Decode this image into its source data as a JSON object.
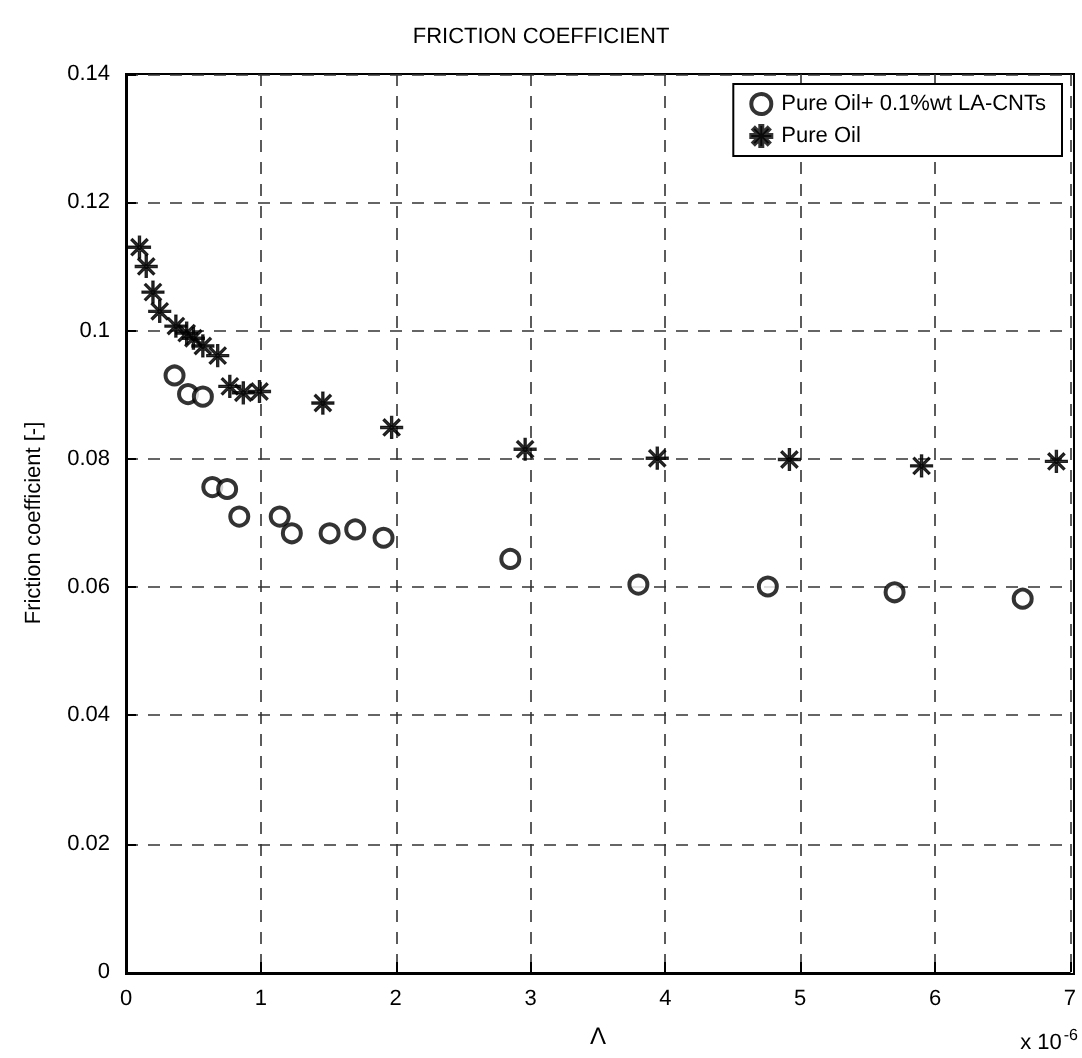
{
  "chart_data": {
    "type": "scatter",
    "title": "FRICTION COEFFICIENT",
    "xlabel": "Λ",
    "ylabel": "Friction coefficient [-]",
    "annotations": [
      "x 10$^{-6}$"
    ],
    "xlim": [
      0,
      7
    ],
    "xticks": [
      0,
      1,
      2,
      3,
      4,
      5,
      6,
      7
    ],
    "ylim": [
      0,
      0.14
    ],
    "yticks": [
      0,
      0.02,
      0.04,
      0.06,
      0.08,
      0.1,
      0.12,
      0.14
    ],
    "grid": true,
    "legend": "top right",
    "series": [
      {
        "name": "Pure Oil+ 0.1%wt LA-CNTs",
        "color": "#000000",
        "marker": "circle",
        "x": [
          0.36,
          0.46,
          0.57,
          0.64,
          0.75,
          0.84,
          1.14,
          1.23,
          1.51,
          1.7,
          1.91,
          2.85,
          3.8,
          4.76,
          5.7,
          6.65
        ],
        "values": [
          0.093,
          0.0901,
          0.0897,
          0.0756,
          0.0753,
          0.071,
          0.071,
          0.0684,
          0.0684,
          0.069,
          0.0677,
          0.0644,
          0.0604,
          0.0601,
          0.0592,
          0.0582
        ]
      },
      {
        "name": "Pure Oil",
        "color": "#000000",
        "marker": "star",
        "x": [
          0.1,
          0.15,
          0.2,
          0.25,
          0.37,
          0.45,
          0.5,
          0.57,
          0.68,
          0.77,
          0.87,
          0.99,
          1.46,
          1.97,
          2.96,
          3.94,
          4.92,
          5.9,
          6.9
        ],
        "values": [
          0.113,
          0.11,
          0.106,
          0.103,
          0.1007,
          0.0996,
          0.0988,
          0.0976,
          0.0961,
          0.0913,
          0.0903,
          0.0905,
          0.0887,
          0.0849,
          0.0815,
          0.0801,
          0.0799,
          0.0789,
          0.0796
        ]
      }
    ]
  }
}
